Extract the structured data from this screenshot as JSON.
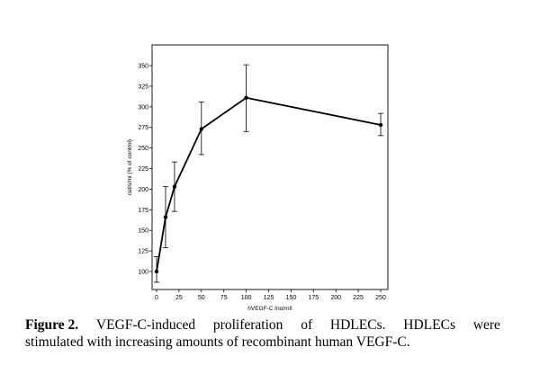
{
  "chart_data": {
    "type": "line",
    "title": "",
    "xlabel": "hVEGF-C [ng/ml]",
    "ylabel": "cells/ml (% of control)",
    "xlim": [
      0,
      250
    ],
    "ylim": [
      87,
      365
    ],
    "x_ticks": [
      0,
      25,
      50,
      75,
      100,
      125,
      150,
      175,
      200,
      225,
      250
    ],
    "y_ticks": [
      100,
      125,
      150,
      175,
      200,
      225,
      250,
      275,
      300,
      325,
      350
    ],
    "grid": false,
    "legend": "none",
    "line_color": "#000000",
    "series": [
      {
        "x": [
          0,
          10,
          20,
          50,
          100,
          250
        ],
        "y": [
          100,
          166,
          203,
          273,
          311,
          278
        ],
        "error_low": [
          87,
          129,
          173,
          242,
          270,
          265
        ],
        "error_high": [
          118,
          203,
          233,
          306,
          351,
          292
        ]
      }
    ]
  },
  "caption": {
    "figure_label": "Figure 2.",
    "words_line1": [
      "VEGF-C-induced",
      "proliferation",
      "of",
      "HDLECs.",
      "HDLECs",
      "were"
    ],
    "line2": "stimulated with increasing amounts of recombinant human VEGF-C."
  }
}
